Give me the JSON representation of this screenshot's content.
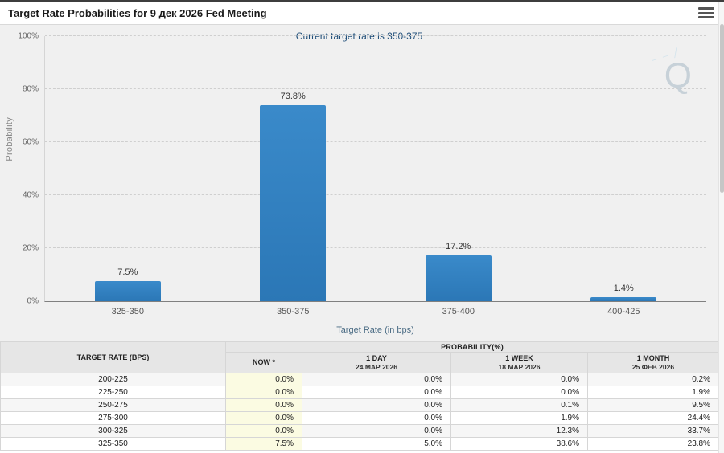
{
  "colors": {
    "bar": "#2f80c3",
    "subtitle_text": "#1f4e79",
    "now_column_bg": "#fbfbe2",
    "chart_bg": "#f0f0f0"
  },
  "header": {
    "title": "Target Rate Probabilities for 9 дек 2026 Fed Meeting"
  },
  "chart_data": {
    "type": "bar",
    "title": "Target Rate Probabilities for 9 дек 2026 Fed Meeting",
    "subtitle": "Current target rate is 350-375",
    "categories": [
      "325-350",
      "350-375",
      "375-400",
      "400-425"
    ],
    "values": [
      7.5,
      73.8,
      17.2,
      1.4
    ],
    "value_labels": [
      "7.5%",
      "73.8%",
      "17.2%",
      "1.4%"
    ],
    "xlabel": "Target Rate (in bps)",
    "ylabel": "Probability",
    "ylim": [
      0,
      100
    ],
    "yticks": [
      "0%",
      "20%",
      "40%",
      "60%",
      "80%",
      "100%"
    ],
    "grid": "horizontal-dashed",
    "legend": "none",
    "watermark": "Q"
  },
  "table": {
    "rate_header": "TARGET RATE (BPS)",
    "prob_header": "PROBABILITY(%)",
    "columns": [
      {
        "label": "NOW *",
        "date": ""
      },
      {
        "label": "1 DAY",
        "date": "24 МАР 2026"
      },
      {
        "label": "1 WEEK",
        "date": "18 МАР 2026"
      },
      {
        "label": "1 MONTH",
        "date": "25 ФЕВ 2026"
      }
    ],
    "rows": [
      [
        "200-225",
        "0.0%",
        "0.0%",
        "0.0%",
        "0.2%"
      ],
      [
        "225-250",
        "0.0%",
        "0.0%",
        "0.0%",
        "1.9%"
      ],
      [
        "250-275",
        "0.0%",
        "0.0%",
        "0.1%",
        "9.5%"
      ],
      [
        "275-300",
        "0.0%",
        "0.0%",
        "1.9%",
        "24.4%"
      ],
      [
        "300-325",
        "0.0%",
        "0.0%",
        "12.3%",
        "33.7%"
      ],
      [
        "325-350",
        "7.5%",
        "5.0%",
        "38.6%",
        "23.8%"
      ]
    ]
  }
}
